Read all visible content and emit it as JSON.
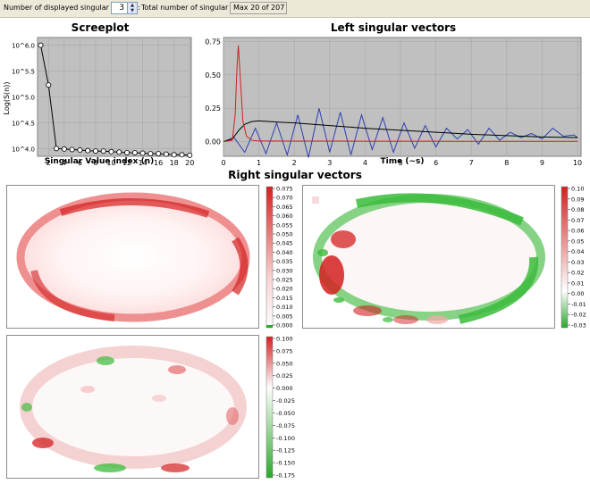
{
  "toolbar": {
    "displayed_label": "Number of displayed singular vectors:",
    "displayed_value": "3",
    "total_label": "Total number of singular values:",
    "total_value": "Max 20 of  207"
  },
  "headings": {
    "right_vectors": "Right singular vectors"
  },
  "colors": {
    "toolbar_bg": "#ece9d8",
    "plot_bg": "#c0c0c0",
    "red": "#d42020",
    "green": "#2aa82a",
    "blue": "#2b3fb0"
  },
  "chart_data": [
    {
      "type": "line",
      "title": "Screeplot",
      "xlabel": "Singular Value index (n)",
      "ylabel": "Log(S(n))",
      "xticks": [
        "2",
        "4",
        "6",
        "8",
        "10",
        "12",
        "14",
        "16",
        "18",
        "20"
      ],
      "yticks": [
        "10^4.0",
        "10^4.5",
        "10^5.0",
        "10^5.5",
        "10^6.0"
      ],
      "ylim": [
        3.85,
        6.15
      ],
      "x": [
        1,
        2,
        3,
        4,
        5,
        6,
        7,
        8,
        9,
        10,
        11,
        12,
        13,
        14,
        15,
        16,
        17,
        18,
        19,
        20
      ],
      "values": [
        6.0,
        5.23,
        4.0,
        3.99,
        3.98,
        3.97,
        3.96,
        3.95,
        3.95,
        3.94,
        3.93,
        3.92,
        3.92,
        3.91,
        3.9,
        3.9,
        3.89,
        3.88,
        3.88,
        3.87
      ]
    },
    {
      "type": "line",
      "title": "Left singular vectors",
      "xlabel": "Time (~s)",
      "ylabel": "",
      "xticks": [
        "0",
        "1",
        "2",
        "3",
        "4",
        "5",
        "6",
        "7",
        "8",
        "9",
        "10"
      ],
      "yticks": [
        "0.00",
        "0.25",
        "0.50",
        "0.75"
      ],
      "xlim": [
        0,
        10.1
      ],
      "ylim": [
        -0.11,
        0.78
      ],
      "series": [
        {
          "color": "#d42020",
          "x": [
            0,
            0.25,
            0.33,
            0.38,
            0.42,
            0.47,
            0.55,
            0.65,
            0.8,
            1.0,
            1.3,
            2,
            3,
            4,
            5,
            6,
            7,
            8,
            9,
            10
          ],
          "values": [
            0,
            0.01,
            0.2,
            0.55,
            0.72,
            0.5,
            0.15,
            0.04,
            0.01,
            0.005,
            0.005,
            0.004,
            0.004,
            0.003,
            0.003,
            0.003,
            0.002,
            0.002,
            0.002,
            0.002
          ]
        },
        {
          "color": "#000000",
          "x": [
            0,
            0.25,
            0.45,
            0.6,
            0.8,
            1.0,
            1.3,
            1.6,
            2,
            3,
            4,
            5,
            6,
            7,
            8,
            9,
            10
          ],
          "values": [
            0,
            0.02,
            0.09,
            0.13,
            0.15,
            0.155,
            0.15,
            0.145,
            0.14,
            0.12,
            0.1,
            0.085,
            0.07,
            0.055,
            0.045,
            0.035,
            0.03
          ]
        },
        {
          "color": "#2b3fb0",
          "x": [
            0,
            0.3,
            0.6,
            0.9,
            1.2,
            1.5,
            1.8,
            2.1,
            2.4,
            2.7,
            3.0,
            3.3,
            3.6,
            3.9,
            4.2,
            4.5,
            4.8,
            5.1,
            5.4,
            5.7,
            6.0,
            6.3,
            6.6,
            6.9,
            7.2,
            7.5,
            7.8,
            8.1,
            8.4,
            8.7,
            9.0,
            9.3,
            9.6,
            9.9,
            10
          ],
          "values": [
            0,
            0.03,
            -0.08,
            0.1,
            -0.09,
            0.14,
            -0.1,
            0.2,
            -0.12,
            0.25,
            -0.08,
            0.22,
            -0.1,
            0.2,
            -0.06,
            0.18,
            -0.08,
            0.14,
            -0.05,
            0.12,
            -0.04,
            0.1,
            0.02,
            0.09,
            -0.02,
            0.1,
            0.01,
            0.07,
            0.03,
            0.06,
            0.02,
            0.1,
            0.04,
            0.05,
            0.03
          ]
        }
      ]
    }
  ],
  "maps": [
    {
      "ticks": [
        "0.075",
        "0.070",
        "0.065",
        "0.060",
        "0.055",
        "0.050",
        "0.045",
        "0.040",
        "0.035",
        "0.030",
        "0.025",
        "0.020",
        "0.015",
        "0.010",
        "0.005",
        "0.000"
      ],
      "cbar": [
        "#d42020",
        "#fff0f0",
        "#ffffff"
      ]
    },
    {
      "ticks": [
        "0.10",
        "0.09",
        "0.08",
        "0.07",
        "0.06",
        "0.05",
        "0.04",
        "0.03",
        "0.02",
        "0.01",
        "0.00",
        "-0.01",
        "-0.02",
        "-0.03"
      ],
      "cbar": [
        "#d42020",
        "#ffffff",
        "#2aa82a"
      ]
    },
    {
      "ticks": [
        "0.100",
        "0.075",
        "0.050",
        "0.025",
        "0.000",
        "-0.025",
        "-0.050",
        "-0.075",
        "-0.100",
        "-0.125",
        "-0.150",
        "-0.175"
      ],
      "cbar": [
        "#d42020",
        "#ffffff",
        "#2aa82a"
      ]
    }
  ]
}
